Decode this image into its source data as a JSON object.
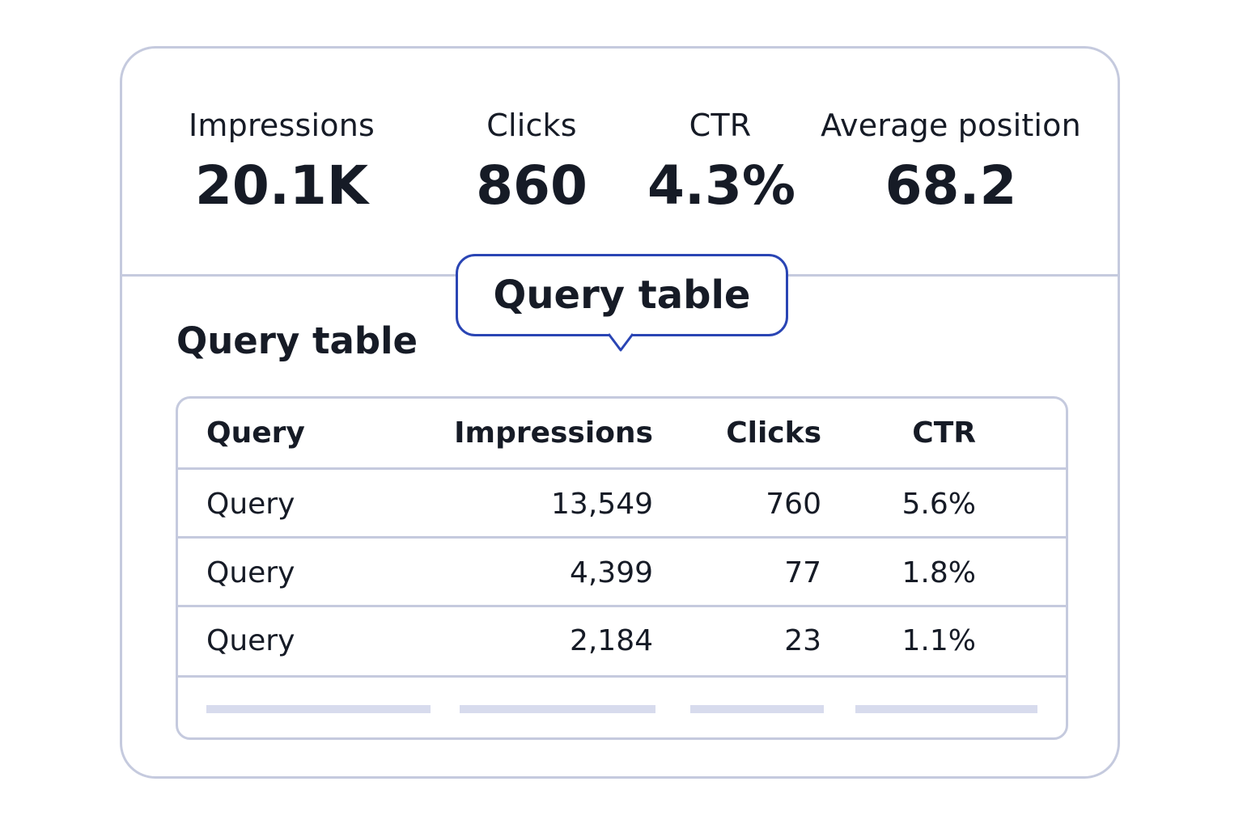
{
  "metrics": [
    {
      "label": "Impressions",
      "value": "20.1K"
    },
    {
      "label": "Clicks",
      "value": "860"
    },
    {
      "label": "CTR",
      "value": "4.3%"
    },
    {
      "label": "Average position",
      "value": "68.2"
    }
  ],
  "section_title": "Query table",
  "tooltip": {
    "text": "Query table"
  },
  "table": {
    "columns": [
      "Query",
      "Impressions",
      "Clicks",
      "CTR"
    ],
    "rows": [
      [
        "Query",
        "13,549",
        "760",
        "5.6%"
      ],
      [
        "Query",
        "4,399",
        "77",
        "1.8%"
      ],
      [
        "Query",
        "2,184",
        "23",
        "1.1%"
      ]
    ]
  },
  "colors": {
    "text": "#161b26",
    "border": "#c5cade",
    "accent": "#2a45b4",
    "skeleton": "#d7dbed"
  }
}
